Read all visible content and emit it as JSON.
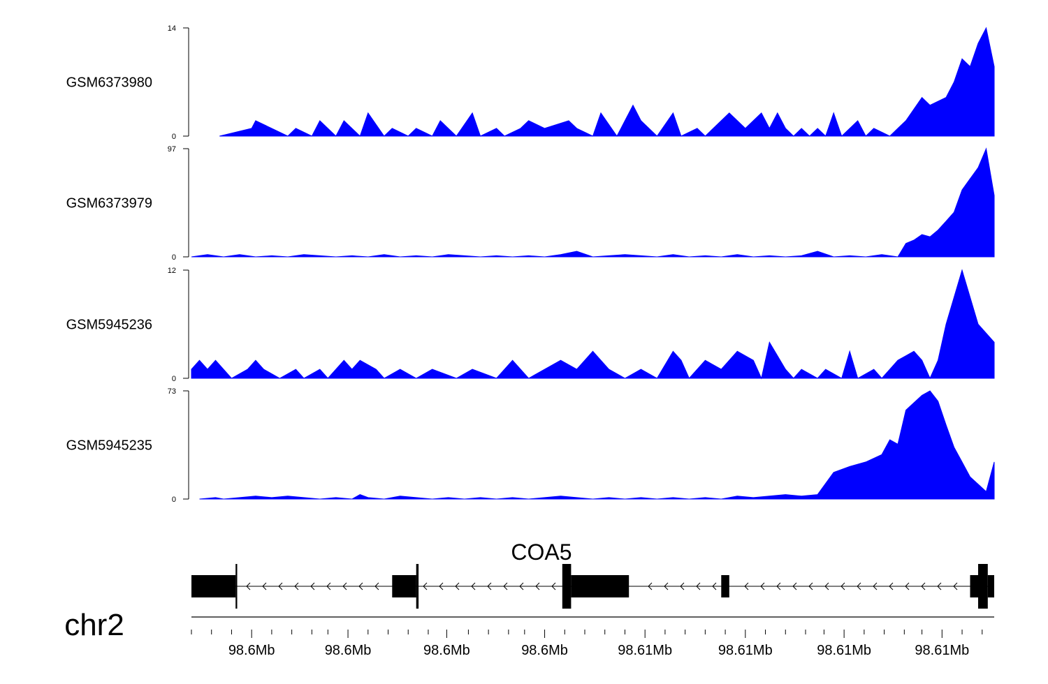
{
  "chart_data": {
    "type": "area",
    "fill_color": "#0000ff",
    "x_range": [
      0,
      100
    ],
    "tracks": [
      {
        "name": "GSM6373980",
        "ymax": 14,
        "ymin": 0,
        "ymax_label": "14",
        "ymin_label": "0",
        "x": [
          3.5,
          7.5,
          8,
          10,
          12,
          13,
          15,
          16,
          18,
          19,
          21,
          22,
          24,
          25,
          27,
          28,
          30,
          31,
          33,
          35,
          36,
          38,
          39,
          41,
          42,
          44,
          47,
          48,
          50,
          51,
          53,
          54,
          55,
          56,
          58,
          60,
          61,
          63,
          64,
          66,
          67,
          69,
          71,
          72,
          73,
          74,
          75,
          76,
          77,
          78,
          79,
          80,
          81,
          83,
          84,
          85,
          87,
          88,
          89,
          91,
          92,
          94,
          95,
          96,
          97,
          98,
          99,
          100
        ],
        "y": [
          0,
          1,
          2,
          1,
          0,
          1,
          0,
          2,
          0,
          2,
          0,
          3,
          0,
          1,
          0,
          1,
          0,
          2,
          0,
          3,
          0,
          1,
          0,
          1,
          2,
          1,
          2,
          1,
          0,
          3,
          0,
          2,
          4,
          2,
          0,
          3,
          0,
          1,
          0,
          2,
          3,
          1,
          3,
          1,
          3,
          1,
          0,
          1,
          0,
          1,
          0,
          3,
          0,
          2,
          0,
          1,
          0,
          1,
          2,
          5,
          4,
          5,
          7,
          10,
          9,
          12,
          14,
          9
        ]
      },
      {
        "name": "GSM6373979",
        "ymax": 97,
        "ymin": 0,
        "ymax_label": "97",
        "ymin_label": "0",
        "x": [
          0,
          2,
          4,
          6,
          8,
          10,
          12,
          14,
          16,
          18,
          20,
          22,
          24,
          26,
          28,
          30,
          32,
          34,
          36,
          38,
          40,
          42,
          44,
          46,
          48,
          50,
          52,
          54,
          56,
          58,
          60,
          62,
          64,
          66,
          68,
          70,
          72,
          74,
          76,
          78,
          80,
          82,
          84,
          86,
          88,
          89,
          90,
          91,
          92,
          93,
          94,
          95,
          96,
          97,
          98,
          99,
          100
        ],
        "y": [
          0,
          2,
          0,
          2,
          0,
          1,
          0,
          2,
          1,
          0,
          1,
          0,
          2,
          0,
          1,
          0,
          2,
          1,
          0,
          1,
          0,
          1,
          0,
          2,
          5,
          0,
          1,
          2,
          1,
          0,
          2,
          0,
          1,
          0,
          2,
          0,
          1,
          0,
          1,
          5,
          0,
          1,
          0,
          2,
          0,
          12,
          15,
          20,
          18,
          24,
          32,
          40,
          60,
          70,
          80,
          97,
          55
        ]
      },
      {
        "name": "GSM5945236",
        "ymax": 12,
        "ymin": 0,
        "ymax_label": "12",
        "ymin_label": "0",
        "x": [
          0,
          1,
          2,
          3,
          5,
          7,
          8,
          9,
          11,
          13,
          14,
          16,
          17,
          19,
          20,
          21,
          23,
          24,
          26,
          28,
          30,
          33,
          35,
          38,
          40,
          42,
          44,
          46,
          48,
          50,
          52,
          54,
          56,
          58,
          60,
          61,
          62,
          64,
          66,
          68,
          70,
          71,
          72,
          74,
          75,
          76,
          78,
          79,
          81,
          82,
          83,
          85,
          86,
          87,
          88,
          90,
          91,
          92,
          93,
          94,
          96,
          98,
          100
        ],
        "y": [
          1,
          2,
          1,
          2,
          0,
          1,
          2,
          1,
          0,
          1,
          0,
          1,
          0,
          2,
          1,
          2,
          1,
          0,
          1,
          0,
          1,
          0,
          1,
          0,
          2,
          0,
          1,
          2,
          1,
          3,
          1,
          0,
          1,
          0,
          3,
          2,
          0,
          2,
          1,
          3,
          2,
          0,
          4,
          1,
          0,
          1,
          0,
          1,
          0,
          3,
          0,
          1,
          0,
          1,
          2,
          3,
          2,
          0,
          2,
          6,
          12,
          6,
          4
        ]
      },
      {
        "name": "GSM5945235",
        "ymax": 73,
        "ymin": 0,
        "ymax_label": "73",
        "ymin_label": "0",
        "x": [
          1,
          3,
          4,
          6,
          8,
          10,
          12,
          14,
          16,
          18,
          20,
          21,
          22,
          24,
          26,
          28,
          30,
          32,
          34,
          36,
          38,
          40,
          42,
          44,
          46,
          48,
          50,
          52,
          54,
          56,
          58,
          60,
          62,
          64,
          66,
          68,
          70,
          72,
          74,
          76,
          78,
          80,
          82,
          84,
          86,
          87,
          88,
          89,
          90,
          91,
          92,
          93,
          94,
          95,
          96,
          97,
          98,
          99,
          100
        ],
        "y": [
          0,
          1,
          0,
          1,
          2,
          1,
          2,
          1,
          0,
          1,
          0,
          3,
          1,
          0,
          2,
          1,
          0,
          1,
          0,
          1,
          0,
          1,
          0,
          1,
          2,
          1,
          0,
          1,
          0,
          1,
          0,
          1,
          0,
          1,
          0,
          2,
          1,
          2,
          3,
          2,
          3,
          18,
          22,
          25,
          30,
          40,
          37,
          60,
          65,
          70,
          73,
          66,
          50,
          35,
          25,
          15,
          10,
          5,
          25
        ]
      }
    ],
    "gene": {
      "name": "COA5",
      "strand": "-",
      "start": 0,
      "end": 100,
      "exons": [
        {
          "start": 0,
          "end": 5.5,
          "height": "thick"
        },
        {
          "start": 5.5,
          "end": 5.7,
          "height": "tall"
        },
        {
          "start": 25,
          "end": 28,
          "height": "thick"
        },
        {
          "start": 28,
          "end": 28.3,
          "height": "tall"
        },
        {
          "start": 46.2,
          "end": 47.3,
          "height": "tall"
        },
        {
          "start": 47.3,
          "end": 54.5,
          "height": "thick"
        },
        {
          "start": 66,
          "end": 67,
          "height": "narrow"
        },
        {
          "start": 97,
          "end": 98,
          "height": "thick"
        },
        {
          "start": 98,
          "end": 99.2,
          "height": "tall"
        },
        {
          "start": 99.2,
          "end": 100,
          "height": "thick"
        }
      ]
    },
    "chromosome": "chr2",
    "x_axis": {
      "major_ticks": [
        {
          "pos": 7.5,
          "label": "98.6Mb"
        },
        {
          "pos": 19.5,
          "label": "98.6Mb"
        },
        {
          "pos": 31.8,
          "label": "98.6Mb"
        },
        {
          "pos": 44,
          "label": "98.6Mb"
        },
        {
          "pos": 56.5,
          "label": "98.61Mb"
        },
        {
          "pos": 69,
          "label": "98.61Mb"
        },
        {
          "pos": 81.3,
          "label": "98.61Mb"
        },
        {
          "pos": 93.5,
          "label": "98.61Mb"
        }
      ],
      "minor_ticks": [
        0,
        2.5,
        5,
        10,
        12.5,
        15,
        17,
        22,
        24.5,
        27,
        29.5,
        34.5,
        37,
        39.5,
        41.5,
        46.5,
        49,
        51.5,
        54,
        59,
        61.5,
        64,
        66.5,
        71.5,
        74,
        76.5,
        78.8,
        83.8,
        86.3,
        88.8,
        91,
        96,
        98.5
      ]
    }
  }
}
